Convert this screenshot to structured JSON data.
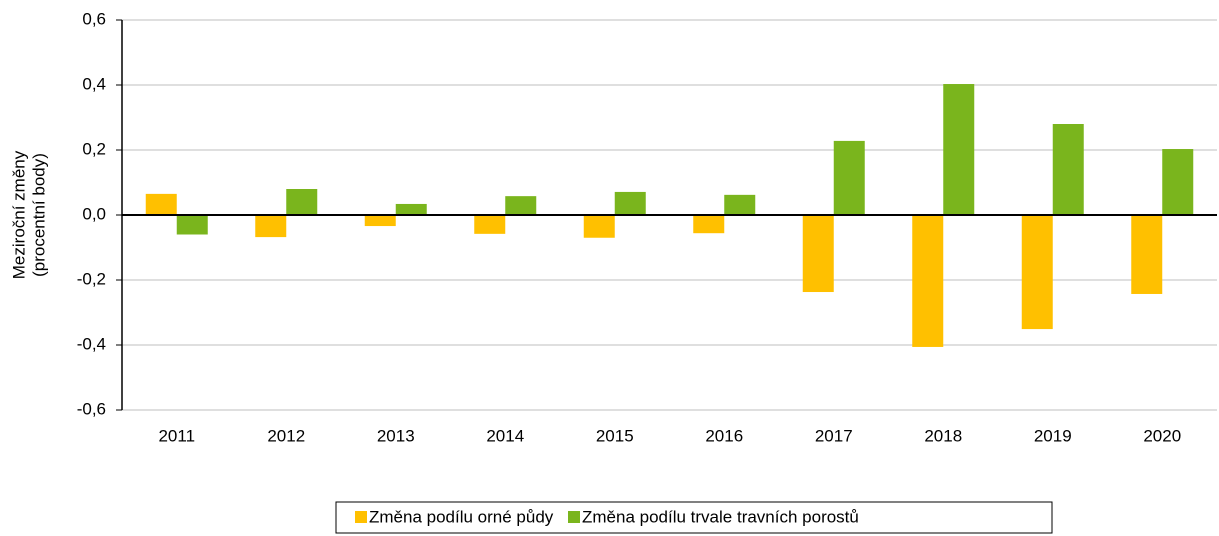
{
  "chart_data": {
    "type": "bar",
    "ylabel": [
      "Meziroční změny",
      "(procentní body)"
    ],
    "categories": [
      "2011",
      "2012",
      "2013",
      "2014",
      "2015",
      "2016",
      "2017",
      "2018",
      "2019",
      "2020"
    ],
    "series": [
      {
        "name": "Změna podílu orné půdy",
        "color": "#ffc000",
        "values": [
          0.065,
          -0.068,
          -0.034,
          -0.058,
          -0.07,
          -0.056,
          -0.237,
          -0.406,
          -0.351,
          -0.243
        ]
      },
      {
        "name": "Změna podílu trvale travních porostů",
        "color": "#7ab51d",
        "values": [
          -0.06,
          0.08,
          0.034,
          0.058,
          0.071,
          0.062,
          0.228,
          0.403,
          0.28,
          0.203
        ]
      }
    ],
    "ylim": [
      -0.6,
      0.6
    ],
    "yticks": [
      {
        "value": -0.6,
        "label": "-0,6"
      },
      {
        "value": -0.4,
        "label": "-0,4"
      },
      {
        "value": -0.2,
        "label": "-0,2"
      },
      {
        "value": 0,
        "label": "0,0"
      },
      {
        "value": 0.2,
        "label": "0,2"
      },
      {
        "value": 0.4,
        "label": "0,4"
      },
      {
        "value": 0.6,
        "label": "0,6"
      }
    ],
    "grid": true
  }
}
